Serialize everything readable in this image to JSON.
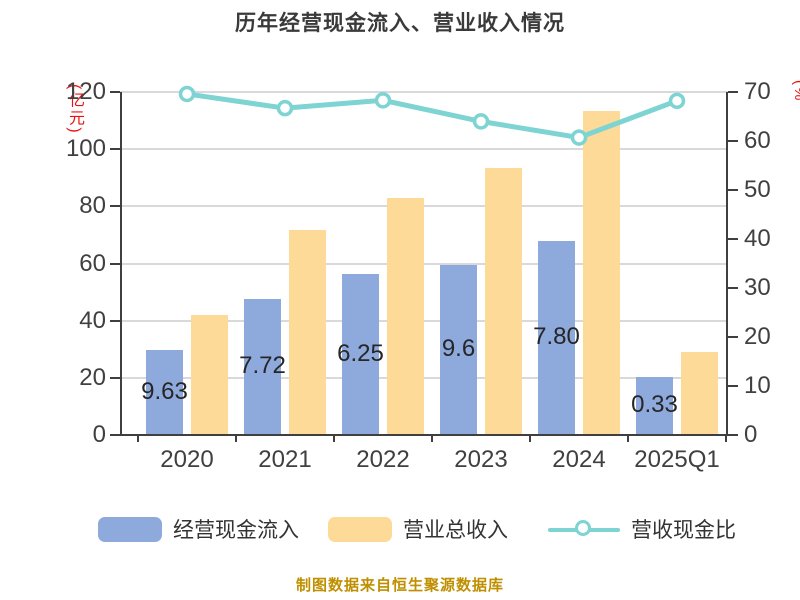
{
  "title": "历年经营现金流入、营业收入情况",
  "source_note": "制图数据来自恒生聚源数据库",
  "colors": {
    "cash_bar": "#8EA9DB",
    "revenue_bar": "#FDDA97",
    "ratio_line": "#7ED3D3",
    "marker_fill": "#FFFFFF",
    "axis_label_red": "#EE1111",
    "grid": "#D9D9D9",
    "axis": "#3F3F3F",
    "tick_text": "#404040",
    "source_text": "#BF8F00"
  },
  "legend": [
    {
      "label": "经营现金流入",
      "type": "bar",
      "color_key": "cash_bar"
    },
    {
      "label": "营业总收入",
      "type": "bar",
      "color_key": "revenue_bar"
    },
    {
      "label": "营收现金比",
      "type": "line",
      "color_key": "ratio_line"
    }
  ],
  "chart_data": {
    "type": "combo (grouped bar + line)",
    "categories": [
      "2020",
      "2021",
      "2022",
      "2023",
      "2024",
      "2025Q1"
    ],
    "series": [
      {
        "name": "经营现金流入",
        "type": "bar",
        "axis": "left",
        "values": [
          29.63,
          47.72,
          56.25,
          59.6,
          67.8,
          20.33
        ],
        "visible_bar_labels": [
          "9.63",
          "7.72",
          "6.25",
          "9.6",
          "7.80",
          "0.33"
        ]
      },
      {
        "name": "营业总收入",
        "type": "bar",
        "axis": "left",
        "values": [
          42.0,
          71.8,
          83.0,
          93.5,
          113.5,
          29.0
        ]
      },
      {
        "name": "营收现金比",
        "type": "line",
        "axis": "right",
        "values": [
          69.6,
          66.7,
          68.3,
          64.0,
          60.7,
          68.2
        ]
      }
    ],
    "left_axis": {
      "label": "(亿元)",
      "min": 0,
      "max": 120,
      "ticks": [
        0,
        20,
        40,
        60,
        80,
        100,
        120
      ]
    },
    "right_axis": {
      "label": "(%",
      "min": 0,
      "max": 70,
      "ticks": [
        0,
        10,
        20,
        30,
        40,
        50,
        60,
        70
      ]
    },
    "grid": "horizontal gridlines at left-axis ticks",
    "legend_position": "bottom",
    "title": "历年经营现金流入、营业收入情况"
  }
}
